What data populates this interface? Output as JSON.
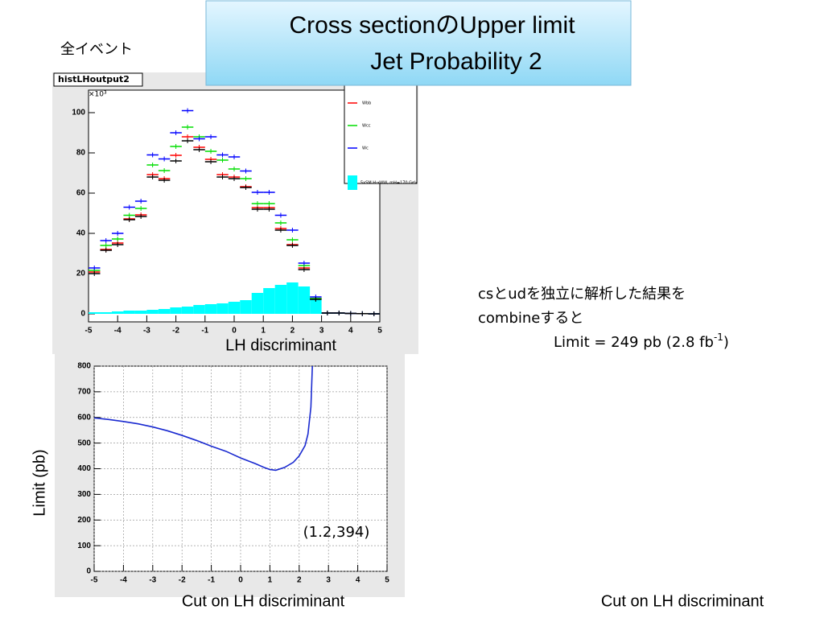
{
  "slide": {
    "title": [
      "Cross sectionのUpper limit",
      "Jet Probability 2"
    ],
    "subtitle_left": "全イベント",
    "note": [
      "csとudを独立に解析した結果を",
      "combineすると"
    ],
    "limit": {
      "text": "Limit = 249 pb (2.8 fb",
      "sup": "-1",
      "close": ")"
    },
    "footer_right": "Cut on LH discriminant"
  },
  "chart_data": [
    {
      "type": "scatter",
      "title": "histLHoutput2",
      "y_multiplier": "×10³",
      "xlabel": "LH discriminant",
      "x": [
        -4.8,
        -4.4,
        -4.0,
        -3.6,
        -3.2,
        -2.8,
        -2.4,
        -2.0,
        -1.6,
        -1.2,
        -0.8,
        -0.4,
        0.0,
        0.4,
        0.8,
        1.2,
        1.6,
        2.0,
        2.4,
        2.8,
        3.2,
        3.6,
        4.0,
        4.4,
        4.8
      ],
      "series": [
        {
          "name": "Wbb",
          "color": "#ff0000",
          "values": [
            20.8,
            32,
            35.2,
            47.2,
            49.2,
            69.2,
            67.2,
            78.8,
            88,
            82.8,
            76.8,
            69.2,
            68,
            63.2,
            52.8,
            52.8,
            42.4,
            34.4,
            22.8,
            7.6,
            0.4,
            0.4,
            0.2,
            0.1,
            0
          ]
        },
        {
          "name": "Wcc",
          "color": "#00dd00",
          "values": [
            21.6,
            34,
            37.2,
            49,
            52.4,
            74,
            71.2,
            83.2,
            92.8,
            88,
            80.8,
            76.4,
            72,
            67.2,
            54.8,
            54.8,
            45.2,
            36.8,
            24,
            7.6,
            0.4,
            0.4,
            0.2,
            0.1,
            0
          ]
        },
        {
          "name": "Wc",
          "color": "#0000ff",
          "values": [
            22.8,
            36.4,
            40,
            53,
            56,
            79,
            77,
            90,
            101,
            87,
            88,
            79,
            78,
            71,
            60.4,
            60.4,
            49,
            41.6,
            25.2,
            8.4,
            0.4,
            0.4,
            0.2,
            0.1,
            0
          ]
        },
        {
          "color": "#000000",
          "values": [
            20,
            31.6,
            34.4,
            46.8,
            48.4,
            68,
            66.4,
            76,
            86,
            81.6,
            75.6,
            68,
            67.2,
            62.8,
            52,
            52,
            41.6,
            34,
            22,
            7.2,
            0.4,
            0.4,
            0.2,
            0.1,
            0
          ]
        },
        {
          "name": "5xSM H→WW, mH=170 GeV",
          "color": "#00ffff",
          "style": "filled",
          "values": [
            0.8,
            0.8,
            1.2,
            1.6,
            1.6,
            2,
            2.4,
            3.2,
            3.6,
            4.4,
            4.8,
            5.2,
            6,
            6.8,
            10.4,
            12.8,
            14.4,
            15.6,
            13.6,
            8,
            0.4,
            0.4,
            0.4,
            0.4,
            0.4
          ]
        }
      ],
      "xlim": [
        -5,
        5
      ],
      "ylim": [
        -4,
        111.2
      ],
      "xticks": [
        -5,
        -4,
        -3,
        -2,
        -1,
        0,
        1,
        2,
        3,
        4,
        5
      ],
      "yticks": [
        0,
        20,
        40,
        60,
        80,
        100
      ]
    },
    {
      "type": "line",
      "ylabel": "Limit (pb)",
      "xlabel": "Cut on LH discriminant",
      "annotation": "(1.2,394)",
      "x": [
        -5,
        -4.5,
        -4,
        -3.5,
        -3,
        -2.5,
        -2,
        -1.5,
        -1,
        -0.5,
        0,
        0.5,
        0.8,
        1.0,
        1.2,
        1.5,
        1.8,
        2.0,
        2.2,
        2.3,
        2.4,
        2.45
      ],
      "series": [
        {
          "color": "#1a2ad0",
          "values": [
            598,
            592,
            584,
            575,
            563,
            548,
            530,
            510,
            488,
            468,
            442,
            420,
            405,
            397,
            394,
            405,
            425,
            450,
            490,
            535,
            640,
            800
          ]
        }
      ],
      "xlim": [
        -5,
        5
      ],
      "ylim": [
        0,
        800
      ],
      "xticks": [
        -5,
        -4,
        -3,
        -2,
        -1,
        0,
        1,
        2,
        3,
        4,
        5
      ],
      "yticks": [
        0,
        100,
        200,
        300,
        400,
        500,
        600,
        700,
        800
      ],
      "grid": true
    }
  ]
}
